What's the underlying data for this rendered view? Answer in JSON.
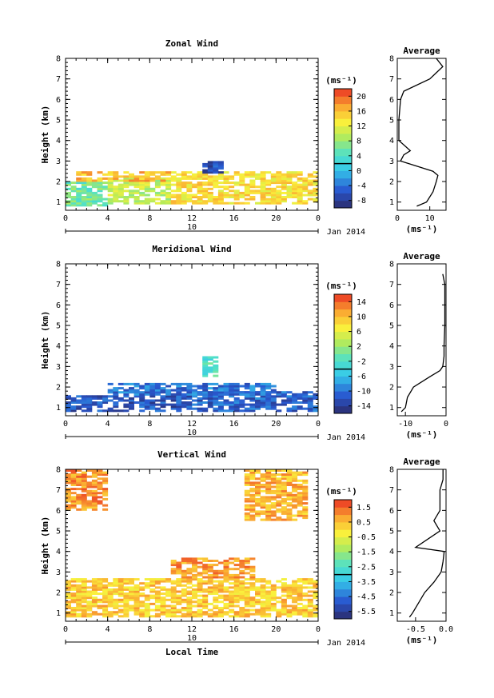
{
  "panels": [
    {
      "title": "Zonal Wind",
      "ylabel": "Height (km)",
      "cbar_unit": "(ms⁻¹)",
      "cbar_ticks": [
        "20",
        "16",
        "12",
        "8",
        "4",
        "0",
        "-4",
        "-8"
      ],
      "date_label": "Jan 2014",
      "day_label": "10",
      "avg_title": "Average",
      "avg_xticks": [
        "0",
        "10"
      ],
      "avg_unit": "(ms⁻¹)"
    },
    {
      "title": "Meridional Wind",
      "ylabel": "Height (km)",
      "cbar_unit": "(ms⁻¹)",
      "cbar_ticks": [
        "14",
        "10",
        "6",
        "2",
        "-2",
        "-6",
        "-10",
        "-14"
      ],
      "date_label": "Jan 2014",
      "day_label": "10",
      "avg_title": "Average",
      "avg_xticks": [
        "-10",
        "0"
      ],
      "avg_unit": "(ms⁻¹)"
    },
    {
      "title": "Vertical Wind",
      "ylabel": "Height (km)",
      "cbar_unit": "(ms⁻¹)",
      "cbar_ticks": [
        "1.5",
        "0.5",
        "-0.5",
        "-1.5",
        "-2.5",
        "-3.5",
        "-4.5",
        "-5.5"
      ],
      "date_label": "Jan 2014",
      "day_label": "10",
      "avg_title": "Average",
      "avg_xticks": [
        "-0.5",
        "0.0"
      ],
      "avg_unit": "(ms⁻¹)",
      "xlabel": "Local Time"
    }
  ],
  "xticks": [
    "0",
    "4",
    "8",
    "12",
    "16",
    "20",
    "0"
  ],
  "yticks": [
    "1",
    "2",
    "3",
    "4",
    "5",
    "6",
    "7",
    "8"
  ],
  "chart_data": [
    {
      "type": "heatmap",
      "title": "Zonal Wind",
      "ylabel": "Height (km)",
      "xlim": [
        0,
        24
      ],
      "ylim": [
        0.6,
        8
      ],
      "clim": [
        -10,
        22
      ],
      "regions": [
        {
          "x": [
            0,
            4
          ],
          "y": [
            0.8,
            2.0
          ],
          "value": 6
        },
        {
          "x": [
            4,
            10
          ],
          "y": [
            0.9,
            2.2
          ],
          "value": 10
        },
        {
          "x": [
            10,
            24
          ],
          "y": [
            0.9,
            2.5
          ],
          "value": 14
        },
        {
          "x": [
            1,
            10
          ],
          "y": [
            2.0,
            2.5
          ],
          "value": 16
        },
        {
          "x": [
            13,
            15
          ],
          "y": [
            2.4,
            3.0
          ],
          "value": -6
        }
      ],
      "average_profile": {
        "title": "Average",
        "xlim": [
          0,
          15
        ],
        "height": [
          0.8,
          1.0,
          1.5,
          2.0,
          2.3,
          2.5,
          2.8,
          3.0,
          3.3,
          3.5,
          4.0,
          5.0,
          6.0,
          6.4,
          7.0,
          7.3,
          7.6,
          8.0
        ],
        "value": [
          6,
          9,
          11,
          12,
          12.5,
          11,
          5,
          1,
          2,
          4,
          0.5,
          0.5,
          1,
          2,
          10,
          12,
          14,
          12
        ]
      }
    },
    {
      "type": "heatmap",
      "title": "Meridional Wind",
      "ylabel": "Height (km)",
      "xlim": [
        0,
        24
      ],
      "ylim": [
        0.6,
        8
      ],
      "clim": [
        -16,
        16
      ],
      "regions": [
        {
          "x": [
            0,
            12
          ],
          "y": [
            0.8,
            1.6
          ],
          "value": -12
        },
        {
          "x": [
            12,
            24
          ],
          "y": [
            0.8,
            1.8
          ],
          "value": -11
        },
        {
          "x": [
            4,
            20
          ],
          "y": [
            1.6,
            2.2
          ],
          "value": -10
        },
        {
          "x": [
            13,
            14.5
          ],
          "y": [
            2.5,
            3.5
          ],
          "value": -2
        }
      ],
      "average_profile": {
        "title": "Average",
        "xlim": [
          -12,
          0
        ],
        "height": [
          0.8,
          1.0,
          1.5,
          2.0,
          2.5,
          2.8,
          3.0,
          3.5,
          4.0,
          5.0,
          6.0,
          7.0,
          7.5
        ],
        "value": [
          -11,
          -10,
          -9.5,
          -8,
          -4,
          -1.5,
          -0.8,
          -0.5,
          -0.5,
          -0.3,
          -0.3,
          -0.3,
          -0.8
        ]
      }
    },
    {
      "type": "heatmap",
      "title": "Vertical Wind",
      "xlabel": "Local Time",
      "ylabel": "Height (km)",
      "xlim": [
        0,
        24
      ],
      "ylim": [
        0.6,
        8
      ],
      "clim": [
        -6,
        2
      ],
      "regions": [
        {
          "x": [
            0,
            24
          ],
          "y": [
            0.8,
            2.7
          ],
          "value": 0.3
        },
        {
          "x": [
            10,
            18
          ],
          "y": [
            2.7,
            3.7
          ],
          "value": 0.9
        },
        {
          "x": [
            0,
            4
          ],
          "y": [
            6.0,
            8.0
          ],
          "value": 1.0
        },
        {
          "x": [
            17,
            23
          ],
          "y": [
            5.5,
            8.0
          ],
          "value": 0.6
        }
      ],
      "average_profile": {
        "title": "Average",
        "xlim": [
          -0.8,
          0
        ],
        "height": [
          0.8,
          1.0,
          1.5,
          2.0,
          2.5,
          3.0,
          3.5,
          4.0,
          4.2,
          5.0,
          5.5,
          6.0,
          7.0,
          7.5,
          8.0
        ],
        "value": [
          -0.6,
          -0.55,
          -0.45,
          -0.35,
          -0.2,
          -0.08,
          -0.05,
          -0.03,
          -0.5,
          -0.1,
          -0.2,
          -0.1,
          -0.1,
          -0.05,
          -0.05
        ]
      }
    }
  ]
}
